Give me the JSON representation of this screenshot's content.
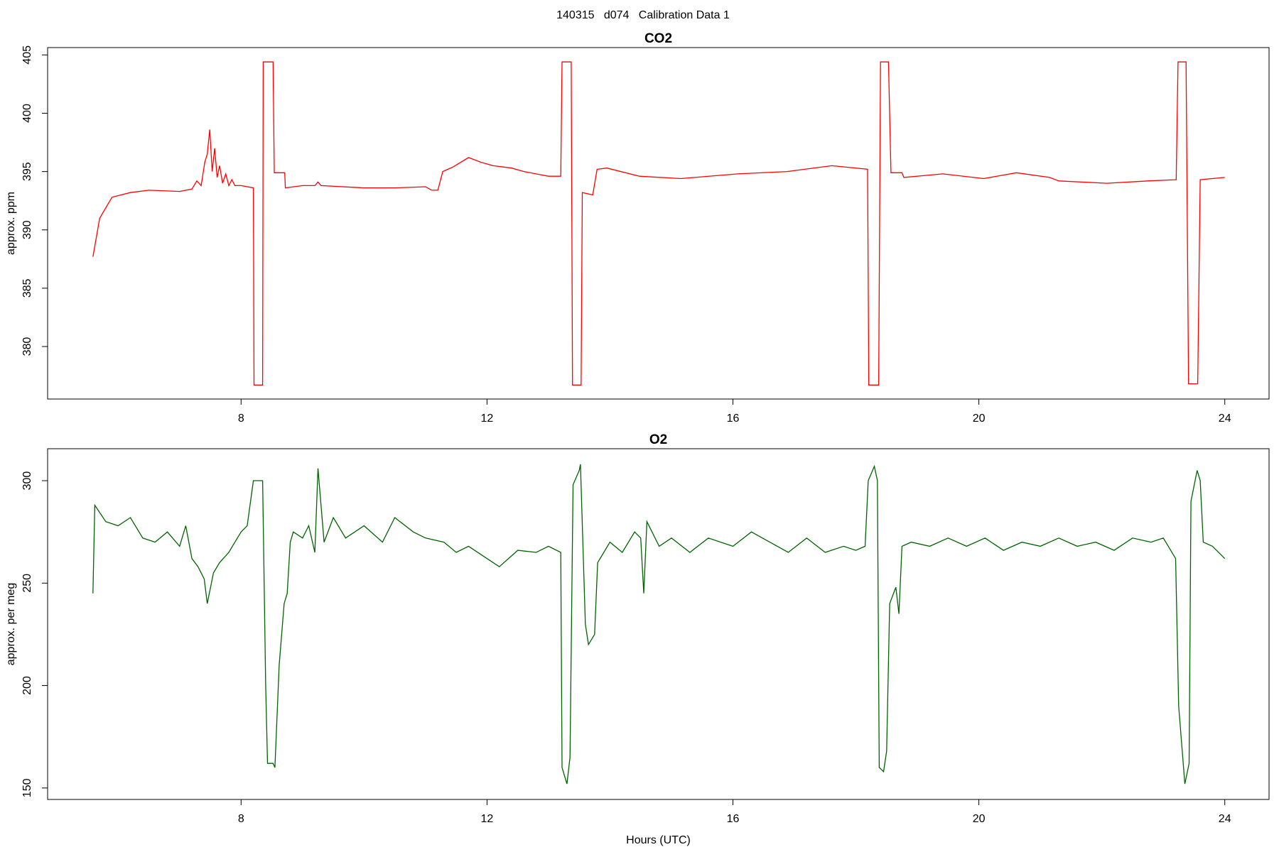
{
  "title": "140315   d074   Calibration Data 1",
  "chart_data": [
    {
      "type": "line",
      "title": "CO2",
      "ylabel": "approx. ppm",
      "color": "#ff0000",
      "x": [
        5.59,
        5.7,
        5.9,
        6.2,
        6.5,
        7.0,
        7.2,
        7.28,
        7.35,
        7.41,
        7.45,
        7.49,
        7.53,
        7.57,
        7.61,
        7.65,
        7.7,
        7.75,
        7.8,
        7.85,
        7.9,
        8.0,
        8.2,
        8.21,
        8.35,
        8.36,
        8.52,
        8.54,
        8.71,
        8.72,
        9.0,
        9.2,
        9.25,
        9.3,
        10.0,
        10.5,
        11.0,
        11.1,
        11.2,
        11.28,
        11.45,
        11.7,
        11.9,
        12.1,
        12.4,
        12.6,
        13.0,
        13.2,
        13.22,
        13.37,
        13.39,
        13.53,
        13.55,
        13.72,
        13.79,
        13.95,
        14.48,
        15.15,
        16.08,
        16.88,
        17.61,
        18.19,
        18.21,
        18.37,
        18.4,
        18.53,
        18.57,
        18.75,
        18.78,
        19.41,
        20.08,
        20.61,
        21.15,
        21.3,
        22.08,
        22.75,
        23.21,
        23.24,
        23.37,
        23.41,
        23.56,
        23.6,
        24.0
      ],
      "values": [
        387.7,
        391,
        392.8,
        393.2,
        393.4,
        393.3,
        393.5,
        394.2,
        393.8,
        395.8,
        396.5,
        398.6,
        395,
        397,
        394.5,
        395.5,
        394,
        394.8,
        393.8,
        394.3,
        393.8,
        393.8,
        393.6,
        376.7,
        376.7,
        404.4,
        404.4,
        394.9,
        394.9,
        393.6,
        393.8,
        393.8,
        394.1,
        393.8,
        393.6,
        393.6,
        393.7,
        393.4,
        393.4,
        395,
        395.4,
        396.2,
        395.8,
        395.5,
        395.3,
        395,
        394.6,
        394.6,
        404.4,
        404.4,
        376.7,
        376.7,
        393.2,
        393,
        395.2,
        395.3,
        394.6,
        394.4,
        394.8,
        395,
        395.5,
        395.2,
        376.7,
        376.7,
        404.4,
        404.4,
        394.9,
        394.9,
        394.5,
        394.8,
        394.4,
        394.9,
        394.5,
        394.2,
        394,
        394.2,
        394.3,
        404.4,
        404.4,
        376.8,
        376.8,
        394.3,
        394.5
      ],
      "xlim": [
        4.853,
        24.72
      ],
      "ylim": [
        375.5,
        405.63
      ],
      "xticks": [
        8,
        12,
        16,
        20,
        24
      ],
      "yticks": [
        380,
        385,
        390,
        395,
        400,
        405
      ]
    },
    {
      "type": "line",
      "title": "O2",
      "ylabel": "approx. per meg",
      "xlabel": "Hours (UTC)",
      "color": "#006400",
      "x": [
        5.59,
        5.62,
        5.8,
        6.0,
        6.2,
        6.4,
        6.6,
        6.8,
        7.0,
        7.1,
        7.2,
        7.3,
        7.4,
        7.45,
        7.55,
        7.65,
        7.8,
        7.9,
        8.0,
        8.1,
        8.2,
        8.35,
        8.4,
        8.43,
        8.52,
        8.55,
        8.62,
        8.7,
        8.75,
        8.8,
        8.85,
        9.0,
        9.1,
        9.2,
        9.25,
        9.35,
        9.5,
        9.7,
        10.0,
        10.3,
        10.5,
        10.8,
        11.0,
        11.3,
        11.5,
        11.7,
        12.0,
        12.2,
        12.5,
        12.8,
        13.0,
        13.2,
        13.22,
        13.3,
        13.35,
        13.4,
        13.5,
        13.52,
        13.6,
        13.65,
        13.75,
        13.8,
        13.9,
        14.0,
        14.2,
        14.4,
        14.5,
        14.55,
        14.6,
        14.8,
        15.0,
        15.3,
        15.6,
        16.0,
        16.3,
        16.6,
        16.9,
        17.2,
        17.5,
        17.8,
        18.0,
        18.15,
        18.2,
        18.3,
        18.35,
        18.38,
        18.45,
        18.5,
        18.55,
        18.65,
        18.7,
        18.75,
        18.9,
        19.2,
        19.5,
        19.8,
        20.1,
        20.4,
        20.7,
        21.0,
        21.3,
        21.6,
        21.9,
        22.2,
        22.5,
        22.8,
        23.0,
        23.2,
        23.25,
        23.35,
        23.42,
        23.45,
        23.55,
        23.6,
        23.65,
        23.8,
        24.0
      ],
      "values": [
        245,
        288,
        280,
        278,
        282,
        272,
        270,
        275,
        268,
        278,
        262,
        258,
        252,
        240,
        255,
        260,
        265,
        270,
        275,
        278,
        300,
        300,
        200,
        162,
        162,
        160,
        210,
        240,
        245,
        270,
        275,
        272,
        278,
        265,
        306,
        270,
        282,
        272,
        278,
        270,
        282,
        275,
        272,
        270,
        265,
        268,
        262,
        258,
        266,
        265,
        268,
        265,
        160,
        152,
        165,
        298,
        305,
        308,
        230,
        220,
        225,
        260,
        265,
        270,
        265,
        275,
        272,
        245,
        280,
        268,
        272,
        265,
        272,
        268,
        275,
        270,
        265,
        272,
        265,
        268,
        266,
        268,
        300,
        307,
        300,
        160,
        158,
        168,
        240,
        248,
        235,
        268,
        270,
        268,
        272,
        268,
        272,
        266,
        270,
        268,
        272,
        268,
        270,
        266,
        272,
        270,
        272,
        262,
        190,
        152,
        162,
        290,
        305,
        300,
        270,
        268,
        262
      ],
      "xlim": [
        4.853,
        24.72
      ],
      "ylim": [
        144.4,
        315.6
      ],
      "xticks": [
        8,
        12,
        16,
        20,
        24
      ],
      "yticks": [
        150,
        200,
        250,
        300
      ]
    }
  ]
}
